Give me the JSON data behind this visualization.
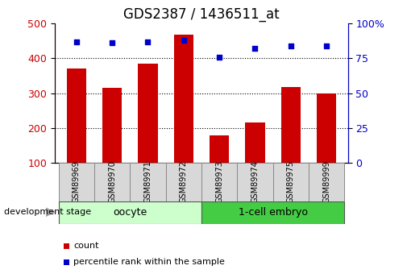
{
  "title": "GDS2387 / 1436511_at",
  "samples": [
    "GSM89969",
    "GSM89970",
    "GSM89971",
    "GSM89972",
    "GSM89973",
    "GSM89974",
    "GSM89975",
    "GSM89999"
  ],
  "counts": [
    370,
    315,
    385,
    468,
    178,
    215,
    318,
    300
  ],
  "percentiles": [
    87,
    86,
    87,
    88,
    76,
    82,
    84,
    84
  ],
  "bar_color": "#cc0000",
  "dot_color": "#0000cc",
  "bar_bottom": 100,
  "ylim_left": [
    100,
    500
  ],
  "ylim_right": [
    0,
    100
  ],
  "yticks_left": [
    100,
    200,
    300,
    400,
    500
  ],
  "yticks_right": [
    0,
    25,
    50,
    75,
    100
  ],
  "yticklabels_right": [
    "0",
    "25",
    "50",
    "75",
    "100%"
  ],
  "groups": [
    {
      "label": "oocyte",
      "start": 0,
      "end": 4,
      "color": "#ccffcc"
    },
    {
      "label": "1-cell embryo",
      "start": 4,
      "end": 8,
      "color": "#44cc44"
    }
  ],
  "dev_stage_label": "development stage",
  "legend_items": [
    {
      "label": "count",
      "color": "#cc0000",
      "marker": "s"
    },
    {
      "label": "percentile rank within the sample",
      "color": "#0000cc",
      "marker": "s"
    }
  ],
  "tick_label_color_left": "#cc0000",
  "tick_label_color_right": "#0000cc",
  "title_fontsize": 12,
  "axis_fontsize": 9,
  "sample_box_color": "#d8d8d8",
  "sample_box_edge": "#888888"
}
